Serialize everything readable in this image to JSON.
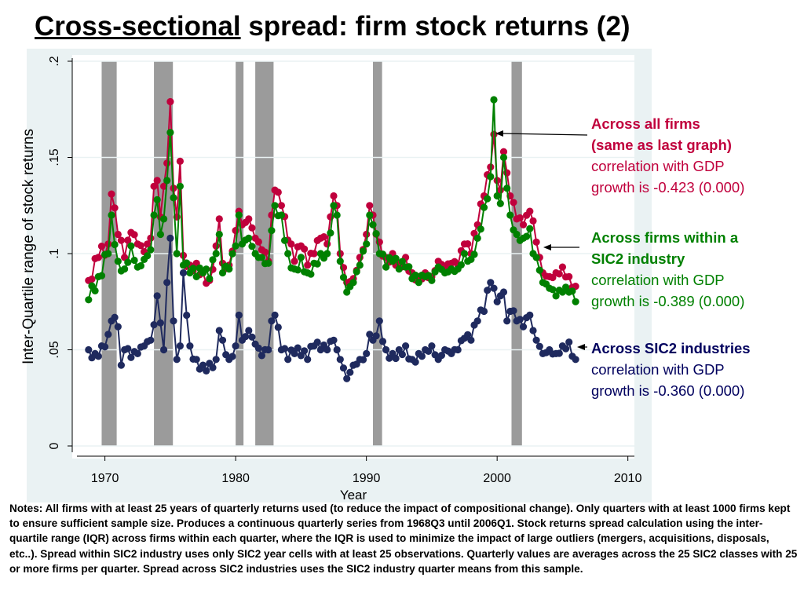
{
  "title": {
    "underlined": "Cross-sectional",
    "rest": " spread: firm stock returns (2)"
  },
  "chart_data": {
    "type": "line",
    "xlabel": "Year",
    "ylabel": "Inter-Quartile range of stock returns",
    "xlim": [
      1967.5,
      2010.5
    ],
    "ylim": [
      0,
      0.2
    ],
    "x_ticks": [
      1970,
      1980,
      1990,
      2000,
      2010
    ],
    "x_tick_labels": [
      "1970",
      "1980",
      "1990",
      "2000",
      "2010"
    ],
    "y_ticks": [
      0,
      0.05,
      0.1,
      0.15,
      0.2
    ],
    "y_tick_labels": [
      "0",
      ".05",
      ".1",
      ".15",
      ".2"
    ],
    "grid": true,
    "recessions": [
      [
        1969.75,
        1970.9
      ],
      [
        1973.75,
        1975.2
      ],
      [
        1980.0,
        1980.6
      ],
      [
        1981.5,
        1982.9
      ],
      [
        1990.5,
        1991.2
      ],
      [
        2001.1,
        2001.9
      ]
    ],
    "series": [
      {
        "name": "Across all firms",
        "color": "#c0003c",
        "anchors": [
          [
            1968.75,
            0.086
          ],
          [
            1969.5,
            0.098
          ],
          [
            1970.25,
            0.105
          ],
          [
            1970.5,
            0.131
          ],
          [
            1971,
            0.11
          ],
          [
            1971.5,
            0.098
          ],
          [
            1972,
            0.111
          ],
          [
            1972.5,
            0.105
          ],
          [
            1973,
            0.101
          ],
          [
            1973.5,
            0.108
          ],
          [
            1973.75,
            0.135
          ],
          [
            1974,
            0.138
          ],
          [
            1974.25,
            0.119
          ],
          [
            1974.5,
            0.135
          ],
          [
            1974.75,
            0.147
          ],
          [
            1975,
            0.179
          ],
          [
            1975.25,
            0.134
          ],
          [
            1975.5,
            0.119
          ],
          [
            1975.75,
            0.148
          ],
          [
            1976,
            0.099
          ],
          [
            1976.5,
            0.094
          ],
          [
            1977,
            0.095
          ],
          [
            1977.5,
            0.09
          ],
          [
            1978,
            0.086
          ],
          [
            1978.5,
            0.104
          ],
          [
            1978.75,
            0.118
          ],
          [
            1979,
            0.095
          ],
          [
            1979.5,
            0.094
          ],
          [
            1980,
            0.112
          ],
          [
            1980.25,
            0.122
          ],
          [
            1980.5,
            0.115
          ],
          [
            1981,
            0.118
          ],
          [
            1981.5,
            0.108
          ],
          [
            1982,
            0.102
          ],
          [
            1982.5,
            0.096
          ],
          [
            1982.75,
            0.12
          ],
          [
            1983,
            0.133
          ],
          [
            1983.5,
            0.125
          ],
          [
            1984,
            0.107
          ],
          [
            1984.5,
            0.096
          ],
          [
            1985,
            0.104
          ],
          [
            1985.5,
            0.094
          ],
          [
            1986,
            0.1
          ],
          [
            1986.5,
            0.108
          ],
          [
            1987,
            0.105
          ],
          [
            1987.5,
            0.13
          ],
          [
            1987.75,
            0.125
          ],
          [
            1988,
            0.1
          ],
          [
            1988.5,
            0.085
          ],
          [
            1989,
            0.087
          ],
          [
            1989.5,
            0.098
          ],
          [
            1990,
            0.11
          ],
          [
            1990.25,
            0.125
          ],
          [
            1990.5,
            0.12
          ],
          [
            1991,
            0.106
          ],
          [
            1991.5,
            0.098
          ],
          [
            1992,
            0.1
          ],
          [
            1992.5,
            0.095
          ],
          [
            1993,
            0.098
          ],
          [
            1993.5,
            0.09
          ],
          [
            1994,
            0.088
          ],
          [
            1994.5,
            0.09
          ],
          [
            1995,
            0.088
          ],
          [
            1995.5,
            0.096
          ],
          [
            1996,
            0.093
          ],
          [
            1996.5,
            0.095
          ],
          [
            1997,
            0.094
          ],
          [
            1997.5,
            0.105
          ],
          [
            1998,
            0.1
          ],
          [
            1998.5,
            0.115
          ],
          [
            1999,
            0.13
          ],
          [
            1999.5,
            0.145
          ],
          [
            1999.75,
            0.162
          ],
          [
            2000,
            0.138
          ],
          [
            2000.25,
            0.133
          ],
          [
            2000.5,
            0.153
          ],
          [
            2000.75,
            0.142
          ],
          [
            2001,
            0.13
          ],
          [
            2001.5,
            0.118
          ],
          [
            2002,
            0.115
          ],
          [
            2002.5,
            0.122
          ],
          [
            2002.75,
            0.117
          ],
          [
            2003,
            0.106
          ],
          [
            2003.5,
            0.09
          ],
          [
            2004,
            0.088
          ],
          [
            2004.5,
            0.09
          ],
          [
            2005,
            0.093
          ],
          [
            2005.5,
            0.088
          ],
          [
            2006,
            0.083
          ]
        ]
      },
      {
        "name": "Across firms within a SIC2 industry",
        "color": "#008000",
        "anchors": [
          [
            1968.75,
            0.076
          ],
          [
            1969.5,
            0.088
          ],
          [
            1970.25,
            0.1
          ],
          [
            1970.5,
            0.12
          ],
          [
            1971,
            0.096
          ],
          [
            1971.5,
            0.092
          ],
          [
            1972,
            0.104
          ],
          [
            1972.5,
            0.093
          ],
          [
            1973,
            0.097
          ],
          [
            1973.5,
            0.102
          ],
          [
            1973.75,
            0.12
          ],
          [
            1974,
            0.128
          ],
          [
            1974.25,
            0.11
          ],
          [
            1974.5,
            0.118
          ],
          [
            1974.75,
            0.138
          ],
          [
            1975,
            0.163
          ],
          [
            1975.25,
            0.129
          ],
          [
            1975.5,
            0.1
          ],
          [
            1975.75,
            0.135
          ],
          [
            1976,
            0.094
          ],
          [
            1976.5,
            0.09
          ],
          [
            1977,
            0.088
          ],
          [
            1977.5,
            0.09
          ],
          [
            1978,
            0.087
          ],
          [
            1978.5,
            0.1
          ],
          [
            1978.75,
            0.11
          ],
          [
            1979,
            0.09
          ],
          [
            1979.5,
            0.092
          ],
          [
            1980,
            0.104
          ],
          [
            1980.25,
            0.12
          ],
          [
            1980.5,
            0.105
          ],
          [
            1981,
            0.108
          ],
          [
            1981.5,
            0.1
          ],
          [
            1982,
            0.098
          ],
          [
            1982.5,
            0.095
          ],
          [
            1982.75,
            0.112
          ],
          [
            1983,
            0.125
          ],
          [
            1983.5,
            0.12
          ],
          [
            1984,
            0.1
          ],
          [
            1984.5,
            0.092
          ],
          [
            1985,
            0.098
          ],
          [
            1985.5,
            0.09
          ],
          [
            1986,
            0.095
          ],
          [
            1986.5,
            0.1
          ],
          [
            1987,
            0.1
          ],
          [
            1987.5,
            0.125
          ],
          [
            1987.75,
            0.12
          ],
          [
            1988,
            0.096
          ],
          [
            1988.5,
            0.08
          ],
          [
            1989,
            0.085
          ],
          [
            1989.5,
            0.094
          ],
          [
            1990,
            0.105
          ],
          [
            1990.25,
            0.12
          ],
          [
            1990.5,
            0.115
          ],
          [
            1991,
            0.1
          ],
          [
            1991.5,
            0.093
          ],
          [
            1992,
            0.096
          ],
          [
            1992.5,
            0.092
          ],
          [
            1993,
            0.093
          ],
          [
            1993.5,
            0.087
          ],
          [
            1994,
            0.085
          ],
          [
            1994.5,
            0.088
          ],
          [
            1995,
            0.086
          ],
          [
            1995.5,
            0.093
          ],
          [
            1996,
            0.09
          ],
          [
            1996.5,
            0.092
          ],
          [
            1997,
            0.092
          ],
          [
            1997.5,
            0.1
          ],
          [
            1998,
            0.097
          ],
          [
            1998.5,
            0.108
          ],
          [
            1999,
            0.124
          ],
          [
            1999.5,
            0.14
          ],
          [
            1999.75,
            0.18
          ],
          [
            2000,
            0.13
          ],
          [
            2000.25,
            0.126
          ],
          [
            2000.5,
            0.15
          ],
          [
            2000.75,
            0.134
          ],
          [
            2001,
            0.12
          ],
          [
            2001.5,
            0.11
          ],
          [
            2002,
            0.108
          ],
          [
            2002.5,
            0.113
          ],
          [
            2002.75,
            0.1
          ],
          [
            2003,
            0.098
          ],
          [
            2003.5,
            0.085
          ],
          [
            2004,
            0.082
          ],
          [
            2004.5,
            0.078
          ],
          [
            2005,
            0.08
          ],
          [
            2005.5,
            0.08
          ],
          [
            2006,
            0.075
          ]
        ]
      },
      {
        "name": "Across SIC2 industries",
        "color": "#1f2a5e",
        "anchors": [
          [
            1968.75,
            0.05
          ],
          [
            1969.25,
            0.048
          ],
          [
            1969.75,
            0.052
          ],
          [
            1970.25,
            0.058
          ],
          [
            1970.5,
            0.065
          ],
          [
            1971,
            0.062
          ],
          [
            1971.25,
            0.042
          ],
          [
            1971.5,
            0.05
          ],
          [
            1972,
            0.046
          ],
          [
            1972.5,
            0.048
          ],
          [
            1973,
            0.052
          ],
          [
            1973.5,
            0.055
          ],
          [
            1973.75,
            0.063
          ],
          [
            1974,
            0.078
          ],
          [
            1974.25,
            0.064
          ],
          [
            1974.5,
            0.05
          ],
          [
            1974.75,
            0.085
          ],
          [
            1975,
            0.108
          ],
          [
            1975.25,
            0.065
          ],
          [
            1975.5,
            0.045
          ],
          [
            1975.75,
            0.052
          ],
          [
            1976,
            0.09
          ],
          [
            1976.5,
            0.052
          ],
          [
            1977,
            0.045
          ],
          [
            1977.5,
            0.042
          ],
          [
            1978,
            0.043
          ],
          [
            1978.5,
            0.045
          ],
          [
            1978.75,
            0.06
          ],
          [
            1979,
            0.055
          ],
          [
            1979.5,
            0.045
          ],
          [
            1980,
            0.052
          ],
          [
            1980.25,
            0.068
          ],
          [
            1980.5,
            0.055
          ],
          [
            1981,
            0.06
          ],
          [
            1981.5,
            0.053
          ],
          [
            1982,
            0.047
          ],
          [
            1982.5,
            0.05
          ],
          [
            1982.75,
            0.065
          ],
          [
            1983,
            0.068
          ],
          [
            1983.5,
            0.05
          ],
          [
            1984,
            0.045
          ],
          [
            1984.5,
            0.048
          ],
          [
            1985,
            0.047
          ],
          [
            1985.5,
            0.045
          ],
          [
            1986,
            0.052
          ],
          [
            1986.5,
            0.05
          ],
          [
            1987,
            0.05
          ],
          [
            1987.5,
            0.055
          ],
          [
            1987.75,
            0.05
          ],
          [
            1988,
            0.045
          ],
          [
            1988.5,
            0.035
          ],
          [
            1989,
            0.042
          ],
          [
            1989.5,
            0.045
          ],
          [
            1990,
            0.048
          ],
          [
            1990.25,
            0.058
          ],
          [
            1990.5,
            0.055
          ],
          [
            1991,
            0.065
          ],
          [
            1991.5,
            0.05
          ],
          [
            1992,
            0.048
          ],
          [
            1992.5,
            0.05
          ],
          [
            1993,
            0.052
          ],
          [
            1993.5,
            0.045
          ],
          [
            1994,
            0.048
          ],
          [
            1994.5,
            0.05
          ],
          [
            1995,
            0.052
          ],
          [
            1995.5,
            0.045
          ],
          [
            1996,
            0.05
          ],
          [
            1996.5,
            0.048
          ],
          [
            1997,
            0.05
          ],
          [
            1997.5,
            0.056
          ],
          [
            1998,
            0.055
          ],
          [
            1998.5,
            0.065
          ],
          [
            1999,
            0.07
          ],
          [
            1999.5,
            0.085
          ],
          [
            1999.75,
            0.082
          ],
          [
            2000,
            0.075
          ],
          [
            2000.25,
            0.078
          ],
          [
            2000.5,
            0.08
          ],
          [
            2000.75,
            0.065
          ],
          [
            2001,
            0.07
          ],
          [
            2001.5,
            0.065
          ],
          [
            2002,
            0.062
          ],
          [
            2002.5,
            0.068
          ],
          [
            2002.75,
            0.06
          ],
          [
            2003,
            0.055
          ],
          [
            2003.5,
            0.048
          ],
          [
            2004,
            0.05
          ],
          [
            2004.5,
            0.048
          ],
          [
            2005,
            0.052
          ],
          [
            2005.5,
            0.054
          ],
          [
            2006,
            0.045
          ]
        ]
      }
    ]
  },
  "annotations": {
    "all": {
      "label_line1": "Across all firms",
      "label_line2": "(same as last graph)",
      "corr_line1": "correlation with GDP",
      "corr_line2": "growth is -0.423 (0.000)"
    },
    "within": {
      "label_line1": "Across firms within a",
      "label_line2": "SIC2 industry",
      "corr_line1": "correlation with GDP",
      "corr_line2": "growth is -0.389 (0.000)"
    },
    "across": {
      "label_line1": "Across SIC2 industries",
      "corr_line1": "correlation with GDP",
      "corr_line2": "growth is -0.360 (0.000)"
    }
  },
  "notes": "Notes: All firms with at least 25 years of quarterly returns used (to reduce the impact of compositional change). Only quarters with at least 1000 firms kept to ensure sufficient sample size. Produces a continuous quarterly series from 1968Q3 until 2006Q1. Stock returns spread calculation using the inter-quartile range (IQR) across firms within each quarter, where the IQR is used to minimize the impact of large outliers (mergers, acquisitions, disposals, etc..). Spread within SIC2 industry uses only SIC2 year cells with at least 25 observations. Quarterly values are averages across the 25 SIC2 classes with 25 or more firms per quarter.  Spread across SIC2 industries uses the SIC2 industry quarter means from this sample."
}
